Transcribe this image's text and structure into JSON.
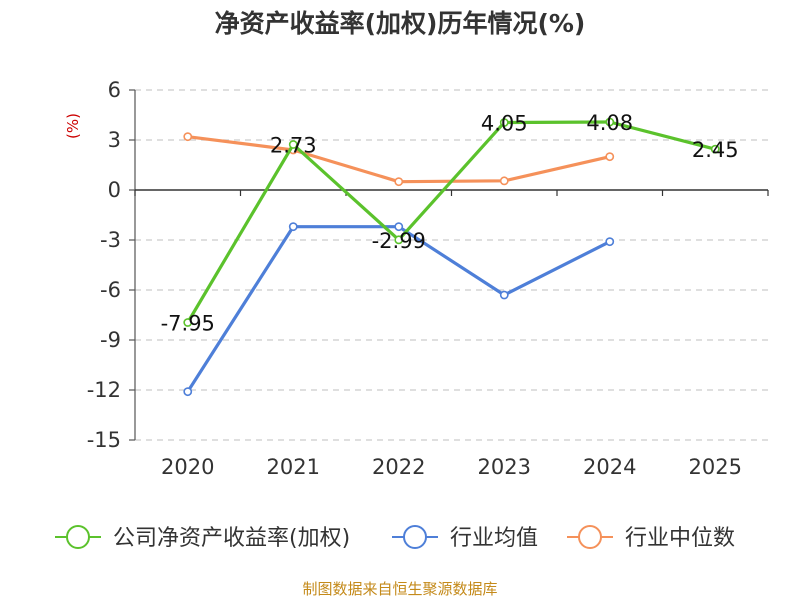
{
  "chart_data": {
    "type": "line",
    "title": "净资产收益率(加权)历年情况(%)",
    "ylabel": "(%)",
    "xlabel": "",
    "categories": [
      "2020",
      "2021",
      "2022",
      "2023",
      "2024",
      "2025"
    ],
    "ylim": [
      -15,
      6
    ],
    "yticks": [
      6,
      3,
      0,
      -3,
      -6,
      -9,
      -12,
      -15
    ],
    "ytick_labels": [
      "6",
      "3",
      "0",
      "-3",
      "-6",
      "-9",
      "-12",
      "-15"
    ],
    "grid": true,
    "legend_position": "bottom",
    "series": [
      {
        "name": "公司净资产收益率(加权)",
        "color": "#5bc22c",
        "values": [
          -7.95,
          2.73,
          -2.99,
          4.05,
          4.08,
          2.45
        ],
        "labels": [
          "-7.95",
          "2.73",
          "-2.99",
          "4.05",
          "4.08",
          "2.45"
        ],
        "show_labels": true
      },
      {
        "name": "行业均值",
        "color": "#4e7fd8",
        "values": [
          -12.1,
          -2.2,
          -2.2,
          -6.3,
          -3.1,
          null
        ],
        "show_labels": false
      },
      {
        "name": "行业中位数",
        "color": "#f5915a",
        "values": [
          3.2,
          2.4,
          0.5,
          0.55,
          2.0,
          null
        ],
        "show_labels": false
      }
    ]
  },
  "source": "制图数据来自恒生聚源数据库"
}
